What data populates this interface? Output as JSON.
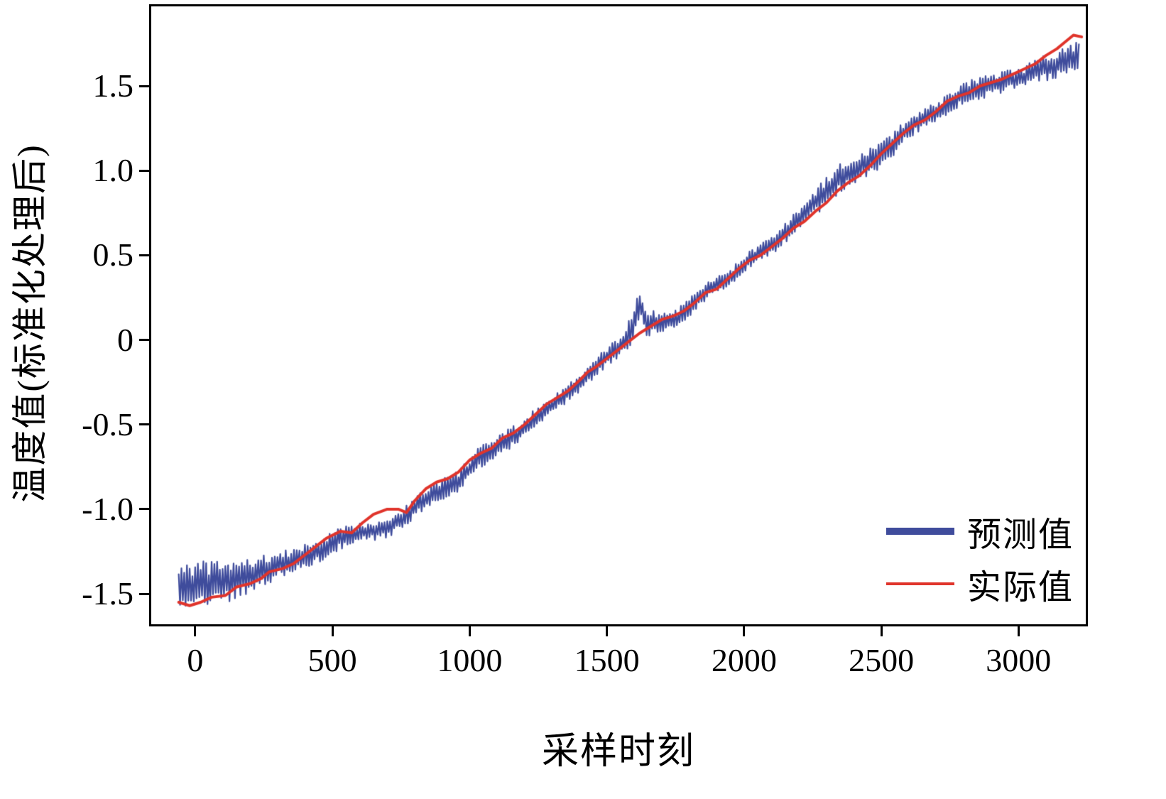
{
  "chart_data": {
    "type": "line",
    "title": "",
    "xlabel": "采样时刻",
    "ylabel": "温度值(标准化处理后)",
    "xlim": [
      -160,
      3245
    ],
    "ylim": [
      -1.68,
      1.97
    ],
    "grid": false,
    "x_ticks": {
      "values": [
        0,
        500,
        1000,
        1500,
        2000,
        2500,
        3000
      ],
      "labels": [
        "0",
        "500",
        "1000",
        "1500",
        "2000",
        "2500",
        "3000"
      ]
    },
    "y_ticks": {
      "values": [
        -1.5,
        -1.0,
        -0.5,
        0,
        0.5,
        1.0,
        1.5
      ],
      "labels": [
        "-1.5",
        "-1.0",
        "-0.5",
        "0",
        "0.5",
        "1.0",
        "1.5"
      ]
    },
    "legend": {
      "position": "lower right"
    },
    "series": [
      {
        "name": "预测值",
        "color": "#3f4c9c",
        "style": "noisy-band",
        "line_width": 2.2,
        "points": [
          [
            -60,
            -1.45
          ],
          [
            50,
            -1.44
          ],
          [
            150,
            -1.42
          ],
          [
            250,
            -1.36
          ],
          [
            350,
            -1.31
          ],
          [
            450,
            -1.25
          ],
          [
            520,
            -1.18
          ],
          [
            600,
            -1.14
          ],
          [
            700,
            -1.11
          ],
          [
            760,
            -1.05
          ],
          [
            820,
            -0.96
          ],
          [
            900,
            -0.88
          ],
          [
            960,
            -0.84
          ],
          [
            1020,
            -0.72
          ],
          [
            1100,
            -0.63
          ],
          [
            1180,
            -0.55
          ],
          [
            1250,
            -0.45
          ],
          [
            1320,
            -0.36
          ],
          [
            1400,
            -0.26
          ],
          [
            1480,
            -0.13
          ],
          [
            1560,
            -0.02
          ],
          [
            1600,
            0.1
          ],
          [
            1620,
            0.22
          ],
          [
            1640,
            0.1
          ],
          [
            1700,
            0.1
          ],
          [
            1760,
            0.13
          ],
          [
            1820,
            0.22
          ],
          [
            1880,
            0.31
          ],
          [
            1940,
            0.35
          ],
          [
            2000,
            0.45
          ],
          [
            2060,
            0.52
          ],
          [
            2120,
            0.58
          ],
          [
            2180,
            0.68
          ],
          [
            2240,
            0.78
          ],
          [
            2300,
            0.88
          ],
          [
            2360,
            0.97
          ],
          [
            2420,
            1.02
          ],
          [
            2480,
            1.07
          ],
          [
            2540,
            1.15
          ],
          [
            2600,
            1.26
          ],
          [
            2660,
            1.31
          ],
          [
            2720,
            1.36
          ],
          [
            2780,
            1.44
          ],
          [
            2840,
            1.48
          ],
          [
            2900,
            1.51
          ],
          [
            2960,
            1.53
          ],
          [
            3020,
            1.55
          ],
          [
            3080,
            1.6
          ],
          [
            3140,
            1.63
          ],
          [
            3220,
            1.68
          ]
        ],
        "noise_amplitude": [
          [
            -60,
            0.14
          ],
          [
            100,
            0.13
          ],
          [
            200,
            0.1
          ],
          [
            300,
            0.08
          ],
          [
            450,
            0.07
          ],
          [
            600,
            0.06
          ],
          [
            800,
            0.06
          ],
          [
            1000,
            0.07
          ],
          [
            1200,
            0.06
          ],
          [
            1400,
            0.05
          ],
          [
            1550,
            0.06
          ],
          [
            1600,
            0.1
          ],
          [
            1700,
            0.06
          ],
          [
            1900,
            0.05
          ],
          [
            2100,
            0.05
          ],
          [
            2250,
            0.08
          ],
          [
            2400,
            0.09
          ],
          [
            2550,
            0.07
          ],
          [
            2700,
            0.06
          ],
          [
            2850,
            0.07
          ],
          [
            3000,
            0.06
          ],
          [
            3100,
            0.08
          ],
          [
            3220,
            0.09
          ]
        ]
      },
      {
        "name": "实际值",
        "color": "#e0342b",
        "style": "line",
        "line_width": 4,
        "points": [
          [
            -60,
            -1.55
          ],
          [
            -20,
            -1.57
          ],
          [
            20,
            -1.55
          ],
          [
            60,
            -1.52
          ],
          [
            110,
            -1.51
          ],
          [
            150,
            -1.46
          ],
          [
            200,
            -1.44
          ],
          [
            240,
            -1.41
          ],
          [
            270,
            -1.37
          ],
          [
            320,
            -1.35
          ],
          [
            360,
            -1.32
          ],
          [
            400,
            -1.27
          ],
          [
            440,
            -1.22
          ],
          [
            480,
            -1.17
          ],
          [
            530,
            -1.13
          ],
          [
            570,
            -1.14
          ],
          [
            610,
            -1.08
          ],
          [
            650,
            -1.03
          ],
          [
            700,
            -1.0
          ],
          [
            740,
            -1.0
          ],
          [
            770,
            -1.02
          ],
          [
            800,
            -0.95
          ],
          [
            840,
            -0.88
          ],
          [
            880,
            -0.84
          ],
          [
            920,
            -0.82
          ],
          [
            960,
            -0.78
          ],
          [
            1000,
            -0.71
          ],
          [
            1040,
            -0.67
          ],
          [
            1080,
            -0.64
          ],
          [
            1120,
            -0.58
          ],
          [
            1160,
            -0.55
          ],
          [
            1200,
            -0.5
          ],
          [
            1240,
            -0.44
          ],
          [
            1280,
            -0.38
          ],
          [
            1320,
            -0.34
          ],
          [
            1360,
            -0.3
          ],
          [
            1400,
            -0.24
          ],
          [
            1430,
            -0.19
          ],
          [
            1460,
            -0.16
          ],
          [
            1500,
            -0.11
          ],
          [
            1540,
            -0.06
          ],
          [
            1580,
            -0.01
          ],
          [
            1620,
            0.04
          ],
          [
            1660,
            0.08
          ],
          [
            1700,
            0.12
          ],
          [
            1740,
            0.14
          ],
          [
            1780,
            0.17
          ],
          [
            1820,
            0.22
          ],
          [
            1860,
            0.28
          ],
          [
            1900,
            0.3
          ],
          [
            1940,
            0.36
          ],
          [
            1980,
            0.42
          ],
          [
            2020,
            0.47
          ],
          [
            2060,
            0.5
          ],
          [
            2100,
            0.55
          ],
          [
            2140,
            0.6
          ],
          [
            2180,
            0.66
          ],
          [
            2220,
            0.7
          ],
          [
            2260,
            0.76
          ],
          [
            2300,
            0.81
          ],
          [
            2340,
            0.88
          ],
          [
            2380,
            0.93
          ],
          [
            2420,
            0.97
          ],
          [
            2460,
            1.03
          ],
          [
            2500,
            1.1
          ],
          [
            2540,
            1.16
          ],
          [
            2580,
            1.22
          ],
          [
            2620,
            1.27
          ],
          [
            2660,
            1.3
          ],
          [
            2700,
            1.35
          ],
          [
            2740,
            1.41
          ],
          [
            2780,
            1.44
          ],
          [
            2820,
            1.46
          ],
          [
            2860,
            1.5
          ],
          [
            2900,
            1.52
          ],
          [
            2940,
            1.54
          ],
          [
            2980,
            1.57
          ],
          [
            3020,
            1.6
          ],
          [
            3060,
            1.63
          ],
          [
            3100,
            1.68
          ],
          [
            3140,
            1.72
          ],
          [
            3170,
            1.76
          ],
          [
            3200,
            1.8
          ],
          [
            3230,
            1.79
          ]
        ]
      }
    ]
  }
}
